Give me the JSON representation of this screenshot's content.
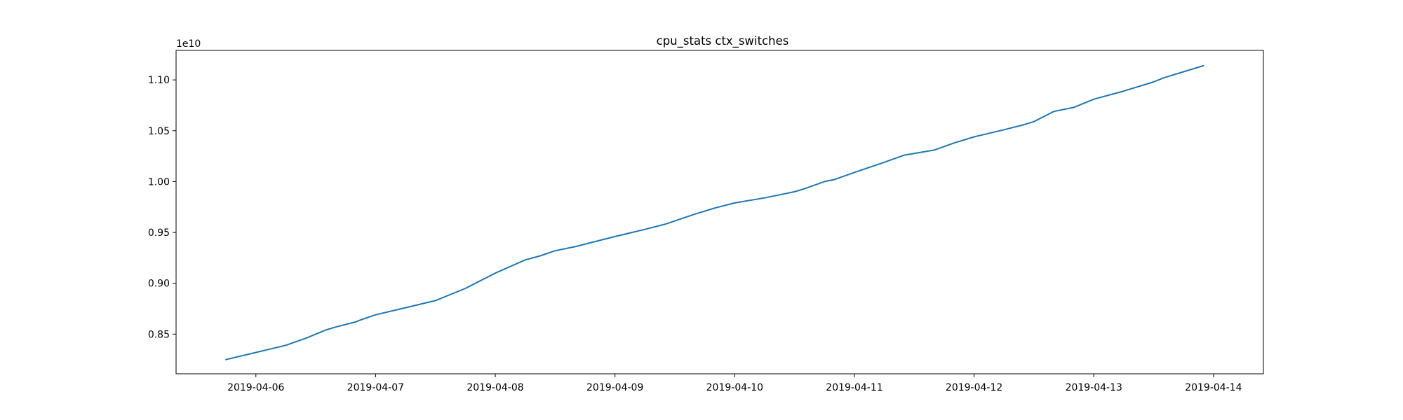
{
  "chart_data": {
    "type": "line",
    "title": "cpu_stats ctx_switches",
    "xlabel": "",
    "ylabel": "",
    "y_offset_label": "1e10",
    "y_scale": 10000000000,
    "xlim": [
      "2019-04-05T08:00",
      "2019-04-14T10:00"
    ],
    "ylim": [
      8.11,
      11.29
    ],
    "x_ticks": [
      "2019-04-06",
      "2019-04-07",
      "2019-04-08",
      "2019-04-09",
      "2019-04-10",
      "2019-04-11",
      "2019-04-12",
      "2019-04-13",
      "2019-04-14"
    ],
    "y_ticks": [
      "0.85",
      "0.90",
      "0.95",
      "1.00",
      "1.05",
      "1.10"
    ],
    "y_tick_values": [
      8.5,
      9.0,
      9.5,
      10.0,
      10.5,
      11.0
    ],
    "grid": false,
    "colors": {
      "line": "#1f77b4",
      "axes": "#000000",
      "background": "#ffffff"
    },
    "series": [
      {
        "name": "",
        "x": [
          "2019-04-05T18:00",
          "2019-04-06T00:00",
          "2019-04-06T06:00",
          "2019-04-06T10:00",
          "2019-04-06T13:00",
          "2019-04-06T14:00",
          "2019-04-06T16:00",
          "2019-04-06T20:00",
          "2019-04-06T21:00",
          "2019-04-07T00:00",
          "2019-04-07T06:00",
          "2019-04-07T12:00",
          "2019-04-07T18:00",
          "2019-04-08T00:00",
          "2019-04-08T06:00",
          "2019-04-08T09:00",
          "2019-04-08T12:00",
          "2019-04-08T16:00",
          "2019-04-08T20:00",
          "2019-04-09T00:00",
          "2019-04-09T06:00",
          "2019-04-09T10:00",
          "2019-04-09T16:00",
          "2019-04-09T20:00",
          "2019-04-10T00:00",
          "2019-04-10T06:00",
          "2019-04-10T09:00",
          "2019-04-10T12:00",
          "2019-04-10T14:00",
          "2019-04-10T18:00",
          "2019-04-10T20:00",
          "2019-04-11T00:00",
          "2019-04-11T06:00",
          "2019-04-11T10:00",
          "2019-04-11T16:00",
          "2019-04-11T20:00",
          "2019-04-12T00:00",
          "2019-04-12T06:00",
          "2019-04-12T10:00",
          "2019-04-12T12:00",
          "2019-04-12T14:00",
          "2019-04-12T16:00",
          "2019-04-12T20:00",
          "2019-04-13T00:00",
          "2019-04-13T06:00",
          "2019-04-13T12:00",
          "2019-04-13T14:00",
          "2019-04-13T18:00",
          "2019-04-13T22:00"
        ],
        "y": [
          8.25,
          8.32,
          8.39,
          8.46,
          8.52,
          8.54,
          8.57,
          8.62,
          8.64,
          8.69,
          8.76,
          8.83,
          8.95,
          9.1,
          9.23,
          9.27,
          9.32,
          9.36,
          9.41,
          9.46,
          9.53,
          9.58,
          9.68,
          9.74,
          9.79,
          9.84,
          9.87,
          9.9,
          9.93,
          10.0,
          10.02,
          10.09,
          10.19,
          10.26,
          10.31,
          10.38,
          10.44,
          10.51,
          10.56,
          10.59,
          10.64,
          10.69,
          10.73,
          10.81,
          10.89,
          10.98,
          11.02,
          11.08,
          11.14
        ]
      }
    ]
  }
}
